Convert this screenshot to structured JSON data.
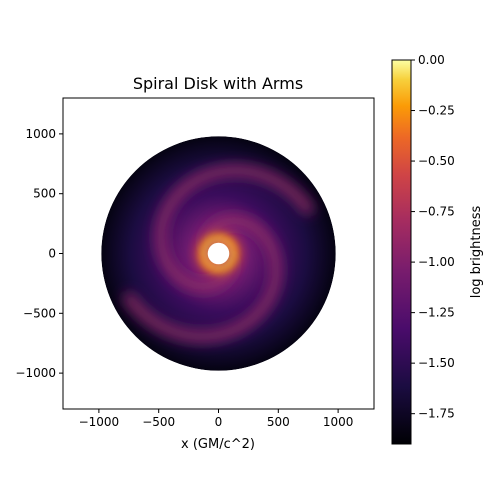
{
  "chart_data": {
    "type": "heatmap",
    "title": "Spiral Disk with Arms",
    "xlabel": "x (GM/c^2)",
    "ylabel": "",
    "xlim": [
      -1300,
      1300
    ],
    "ylim": [
      -1300,
      1300
    ],
    "x_ticks": [
      -1000,
      -500,
      0,
      500,
      1000
    ],
    "x_tick_labels": [
      "−1000",
      "−500",
      "0",
      "500",
      "1000"
    ],
    "y_ticks": [
      1000,
      500,
      0,
      -500,
      -1000
    ],
    "y_tick_labels": [
      "1000",
      "500",
      "0",
      "−500",
      "−1000"
    ],
    "disk": {
      "outer_radius": 980,
      "inner_radius": 90,
      "center": [
        0,
        0
      ],
      "description_values": {
        "arms": 2
      }
    },
    "colorbar": {
      "label": "log brightness",
      "colormap": "inferno",
      "vmin": -1.9,
      "vmax": 0.0,
      "ticks": [
        0.0,
        -0.25,
        -0.5,
        -0.75,
        -1.0,
        -1.25,
        -1.5,
        -1.75
      ],
      "tick_labels": [
        "0.00",
        "−0.25",
        "−0.50",
        "−0.75",
        "−1.00",
        "−1.25",
        "−1.50",
        "−1.75"
      ]
    },
    "grid": false
  }
}
